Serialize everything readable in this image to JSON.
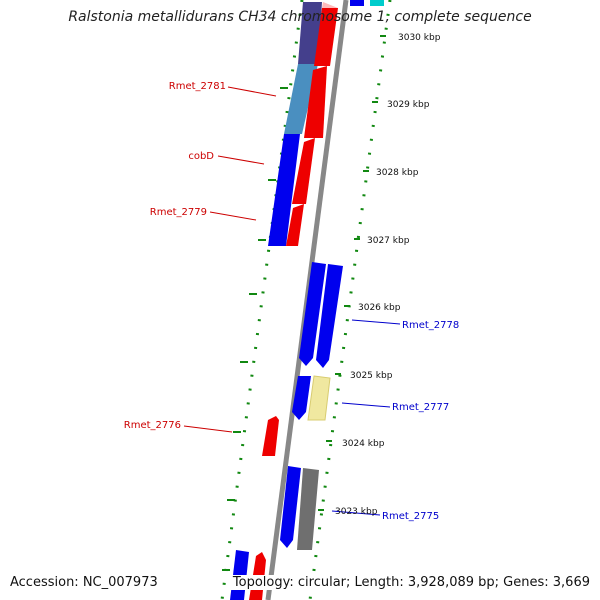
{
  "title": "Ralstonia metallidurans CH34 chromosome 1, complete sequence",
  "accession": "Accession: NC_007973",
  "summary": "Topology: circular; Length: 3,928,089 bp; Genes: 3,669",
  "ticks": [
    "3030 kbp",
    "3029 kbp",
    "3028 kbp",
    "3027 kbp",
    "3026 kbp",
    "3025 kbp",
    "3024 kbp",
    "3023 kbp"
  ],
  "gene_labels": {
    "rmet_2781": "Rmet_2781",
    "cobd": "cobD",
    "rmet_2779": "Rmet_2779",
    "rmet_2778": "Rmet_2778",
    "rmet_2777": "Rmet_2777",
    "rmet_2776": "Rmet_2776",
    "rmet_2775": "Rmet_2775"
  },
  "colors": {
    "label_red": "#cc0000",
    "label_blue": "#0000cc",
    "backbone": "#888888",
    "gc_dots": "#118811"
  }
}
